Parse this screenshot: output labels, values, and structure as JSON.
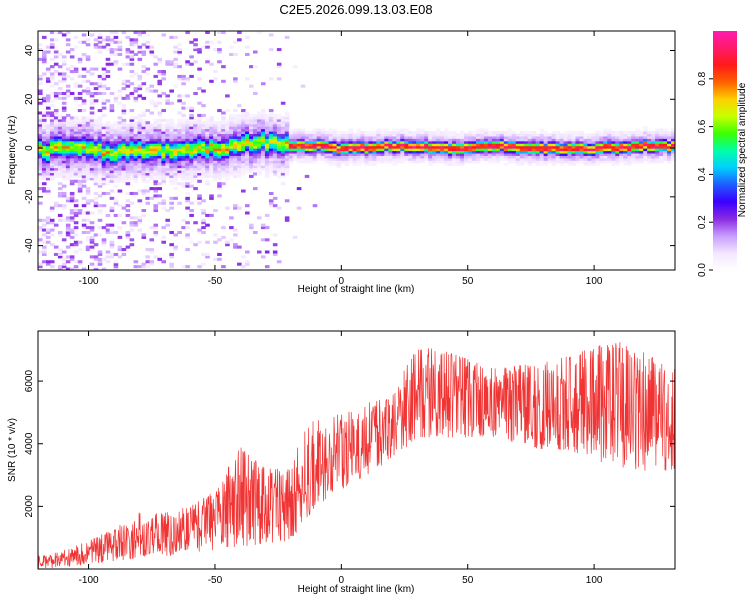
{
  "title": "C2E5.2026.099.13.03.E08",
  "colors": {
    "snr_line": "#f03333",
    "colormap": [
      "#ffffff",
      "#f3e6ff",
      "#c89cff",
      "#8a2be2",
      "#3b00ff",
      "#1e5cff",
      "#00d0ff",
      "#00ffa6",
      "#3cff00",
      "#c8ff00",
      "#ffd000",
      "#ff6000",
      "#ff1a1a",
      "#ff1a6a",
      "#ff1ab0"
    ]
  },
  "chart_data": [
    {
      "type": "heatmap",
      "title": "",
      "xlabel": "Height of straight line (km)",
      "ylabel": "Frequency (Hz)",
      "xlim": [
        -120,
        132
      ],
      "ylim": [
        -50,
        48
      ],
      "xticks": [
        -100,
        -50,
        0,
        50,
        100
      ],
      "xtick_labels": [
        "-100",
        "-50",
        "0",
        "50",
        "100"
      ],
      "yticks": [
        -40,
        -20,
        0,
        20,
        40
      ],
      "ytick_labels": [
        "-40",
        "-20",
        "0",
        "20",
        "40"
      ],
      "ridge": {
        "x": [
          -120,
          -110,
          -100,
          -90,
          -80,
          -70,
          -60,
          -50,
          -40,
          -30,
          -20,
          -10,
          0,
          20,
          40,
          60,
          80,
          100,
          120,
          132
        ],
        "freq": [
          -1,
          1,
          0,
          -2,
          -1,
          -1,
          0,
          -1,
          2,
          3,
          1,
          1,
          0,
          1,
          0,
          1,
          0,
          0,
          1,
          1
        ]
      },
      "colorbar": {
        "label": "Normalized spectral amplitude",
        "range": [
          0,
          1
        ],
        "ticks": [
          0.0,
          0.2,
          0.4,
          0.6,
          0.8
        ],
        "tick_labels": [
          "0.0",
          "0.2",
          "0.4",
          "0.6",
          "0.8"
        ]
      }
    },
    {
      "type": "line",
      "title": "",
      "xlabel": "Height of straight line (km)",
      "ylabel": "SNR (10 * v/v)",
      "xlim": [
        -120,
        132
      ],
      "ylim": [
        0,
        7600
      ],
      "xticks": [
        -100,
        -50,
        0,
        50,
        100
      ],
      "xtick_labels": [
        "-100",
        "-50",
        "0",
        "50",
        "100"
      ],
      "yticks": [
        2000,
        4000,
        6000
      ],
      "ytick_labels": [
        "2000",
        "4000",
        "6000"
      ],
      "series": [
        {
          "name": "SNR",
          "envelope_x": [
            -120,
            -110,
            -100,
            -90,
            -80,
            -70,
            -60,
            -50,
            -40,
            -30,
            -20,
            -15,
            -10,
            0,
            10,
            20,
            25,
            30,
            40,
            50,
            60,
            70,
            80,
            90,
            100,
            110,
            120,
            132
          ],
          "lower": [
            0,
            50,
            150,
            250,
            350,
            400,
            500,
            600,
            700,
            800,
            900,
            1500,
            2000,
            2500,
            3000,
            3500,
            3800,
            4200,
            4200,
            4200,
            4200,
            4000,
            3800,
            3800,
            3500,
            3200,
            3000,
            3200
          ],
          "upper": [
            400,
            600,
            900,
            1300,
            1800,
            1800,
            2000,
            2500,
            3900,
            3200,
            3200,
            4500,
            4800,
            5000,
            5300,
            5500,
            6400,
            7100,
            7000,
            6700,
            6400,
            6500,
            6600,
            6800,
            7100,
            7300,
            6900,
            6400
          ]
        }
      ]
    }
  ]
}
